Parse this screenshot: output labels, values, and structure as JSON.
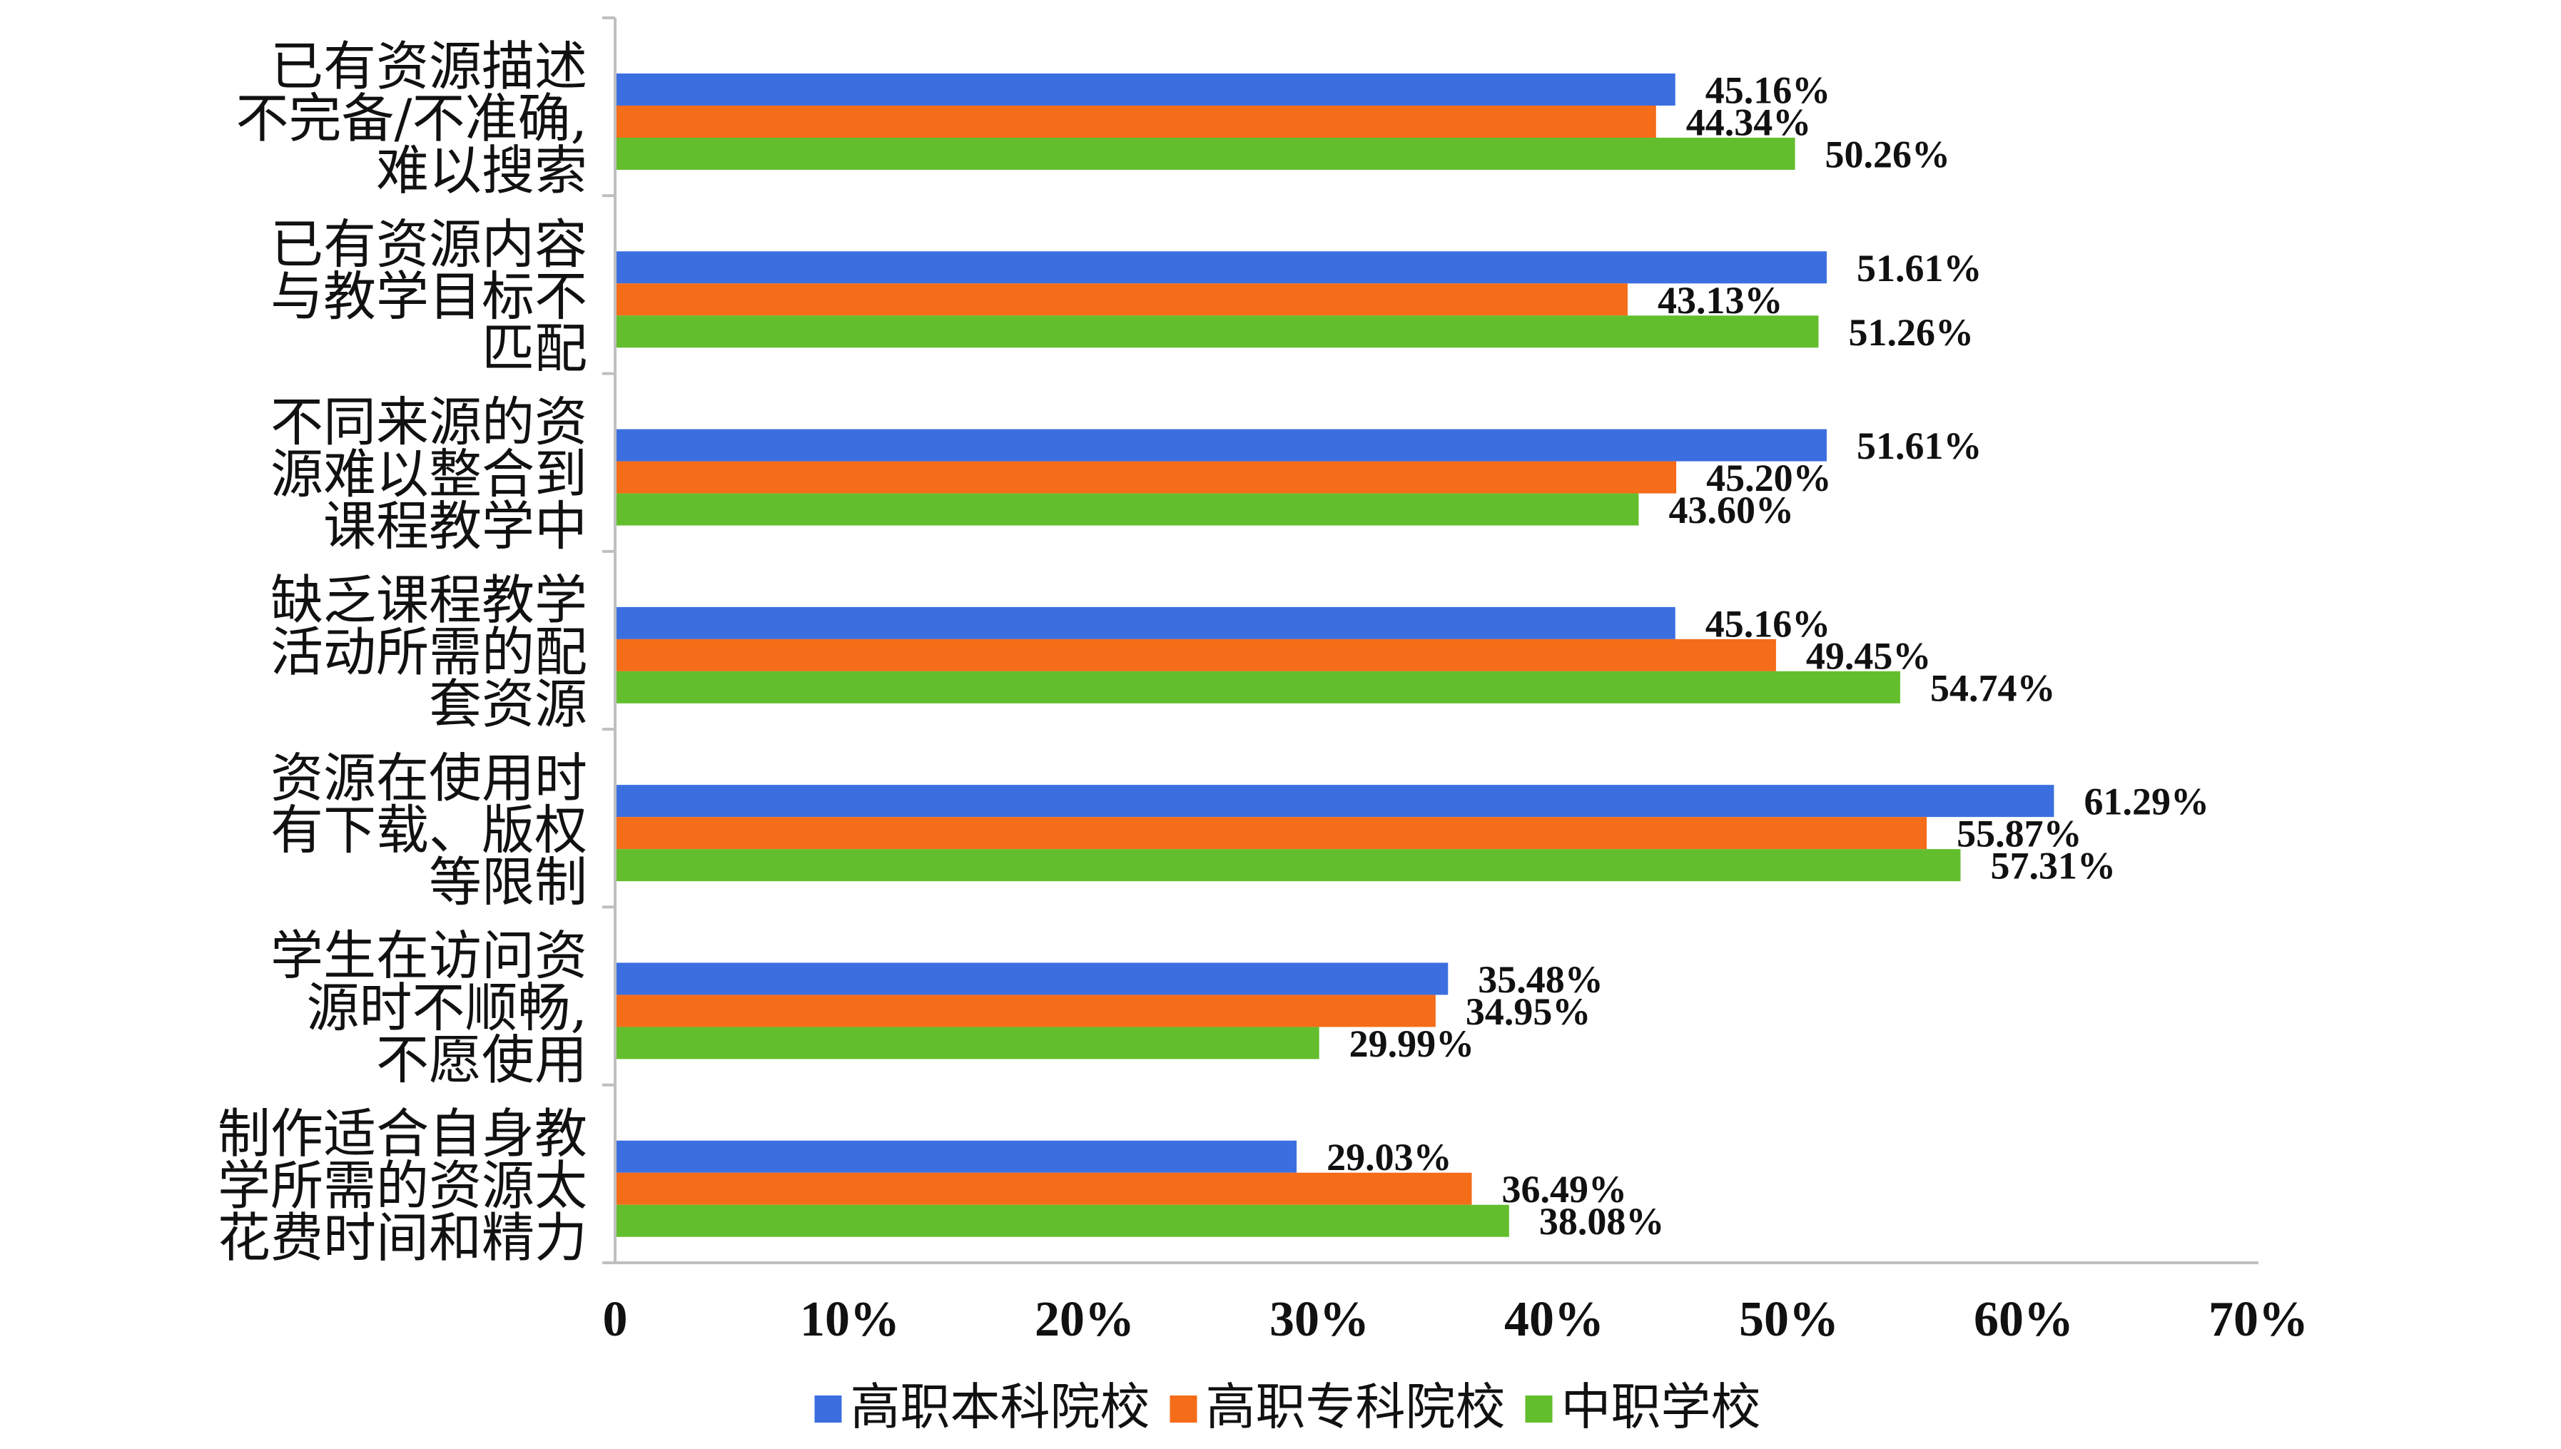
{
  "chart_data": {
    "type": "bar",
    "orientation": "horizontal",
    "title": "",
    "xlabel": "",
    "ylabel": "",
    "xlim": [
      0,
      70
    ],
    "x_ticks": [
      "0",
      "10%",
      "20%",
      "30%",
      "40%",
      "50%",
      "60%",
      "70%"
    ],
    "grid": false,
    "legend_position": "bottom",
    "categories": [
      [
        "已有资源描述",
        "不完备/不准确,",
        "难以搜索"
      ],
      [
        "已有资源内容",
        "与教学目标不",
        "匹配"
      ],
      [
        "不同来源的资",
        "源难以整合到",
        "课程教学中"
      ],
      [
        "缺乏课程教学",
        "活动所需的配",
        "套资源"
      ],
      [
        "资源在使用时",
        "有下载、版权",
        "等限制"
      ],
      [
        "学生在访问资",
        "源时不顺畅,",
        "不愿使用"
      ],
      [
        "制作适合自身教",
        "学所需的资源太",
        "花费时间和精力"
      ]
    ],
    "series": [
      {
        "name": "高职本科院校",
        "color": "#3b6fe0",
        "values": [
          45.16,
          51.61,
          51.61,
          45.16,
          61.29,
          35.48,
          29.03
        ],
        "labels": [
          "45.16%",
          "51.61%",
          "51.61%",
          "45.16%",
          "61.29%",
          "35.48%",
          "29.03%"
        ]
      },
      {
        "name": "高职专科院校",
        "color": "#f56c19",
        "values": [
          44.34,
          43.13,
          45.2,
          49.45,
          55.87,
          34.95,
          36.49
        ],
        "labels": [
          "44.34%",
          "43.13%",
          "45.20%",
          "49.45%",
          "55.87%",
          "34.95%",
          "36.49%"
        ]
      },
      {
        "name": "中职学校",
        "color": "#63be2d",
        "values": [
          50.26,
          51.26,
          43.6,
          54.74,
          57.31,
          29.99,
          38.08
        ],
        "labels": [
          "50.26%",
          "51.26%",
          "43.60%",
          "54.74%",
          "57.31%",
          "29.99%",
          "38.08%"
        ]
      }
    ]
  }
}
